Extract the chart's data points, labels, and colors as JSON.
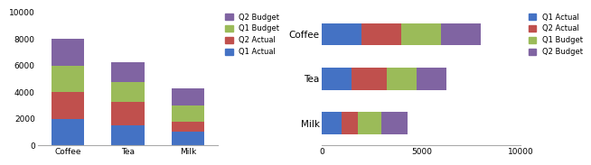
{
  "categories": [
    "Coffee",
    "Tea",
    "Milk"
  ],
  "q1_actual": [
    2000,
    1500,
    1000
  ],
  "q2_actual": [
    2000,
    1750,
    800
  ],
  "q1_budget": [
    2000,
    1500,
    1200
  ],
  "q2_budget": [
    2000,
    1500,
    1300
  ],
  "colors": {
    "Q1 Actual": "#4472C4",
    "Q2 Actual": "#C0504D",
    "Q1 Budget": "#9BBB59",
    "Q2 Budget": "#8064A2"
  },
  "vertical_ylim": [
    0,
    10000
  ],
  "vertical_yticks": [
    0,
    2000,
    4000,
    6000,
    8000,
    10000
  ],
  "horizontal_xlim": [
    0,
    10000
  ],
  "horizontal_xticks": [
    0,
    5000,
    10000
  ],
  "bg_color": "#FFFFFF",
  "legend_left_order": [
    "Q2 Budget",
    "Q1 Budget",
    "Q2 Actual",
    "Q1 Actual"
  ],
  "legend_right_order": [
    "Q1 Actual",
    "Q2 Actual",
    "Q1 Budget",
    "Q2 Budget"
  ]
}
